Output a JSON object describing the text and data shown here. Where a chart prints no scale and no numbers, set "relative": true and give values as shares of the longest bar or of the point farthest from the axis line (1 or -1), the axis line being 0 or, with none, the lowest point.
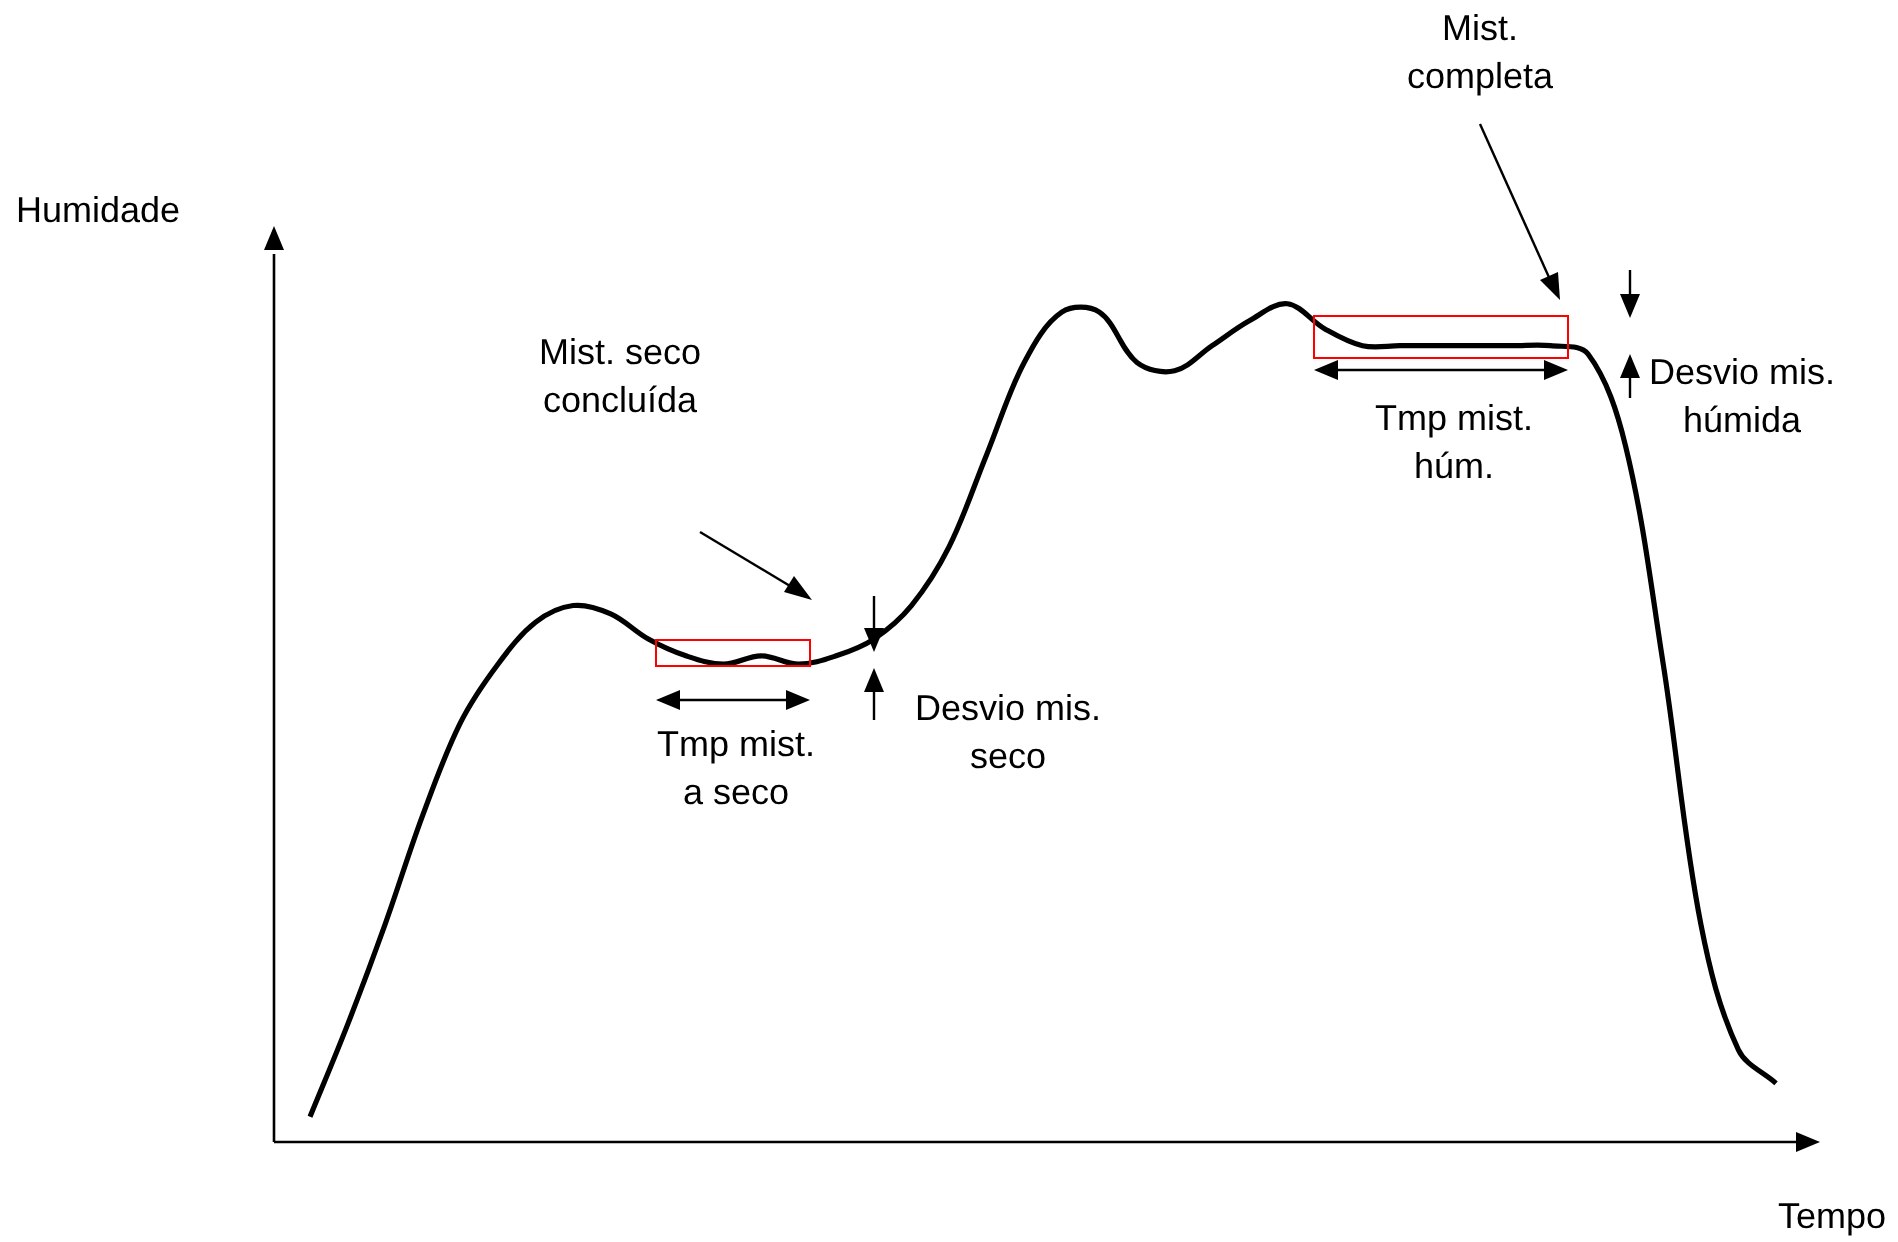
{
  "chart_data": {
    "type": "line",
    "relative": true,
    "xlabel": "Tempo",
    "ylabel": "Humidade",
    "categories": [
      null,
      null,
      null,
      null,
      null,
      null,
      null,
      null,
      null,
      null,
      null,
      null,
      null,
      null,
      null,
      null,
      null,
      null,
      null,
      null,
      null,
      null,
      null,
      null,
      null,
      null,
      null,
      null,
      null,
      null,
      null,
      null,
      null,
      null,
      null,
      null,
      null,
      null,
      null,
      null
    ],
    "series": [
      {
        "color": "#000000",
        "values": [
          0.03,
          0.14,
          0.26,
          0.39,
          0.5,
          0.57,
          0.62,
          0.64,
          0.63,
          0.6,
          0.58,
          0.57,
          0.58,
          0.57,
          0.58,
          0.6,
          0.64,
          0.71,
          0.82,
          0.93,
          0.99,
          0.99,
          0.93,
          0.92,
          0.95,
          0.98,
          1,
          0.97,
          0.95,
          0.95,
          0.95,
          0.95,
          0.95,
          0.95,
          0.94,
          0.83,
          0.57,
          0.26,
          0.11,
          0.07
        ]
      }
    ],
    "marker": "none",
    "line_style": "solid",
    "annotations": [
      "Mist. seco concluída",
      "Tmp mist. a seco",
      "Desvio mis. seco",
      "Mist. completa",
      "Tmp mist. húm.",
      "Desvio mis. húmida"
    ]
  }
}
